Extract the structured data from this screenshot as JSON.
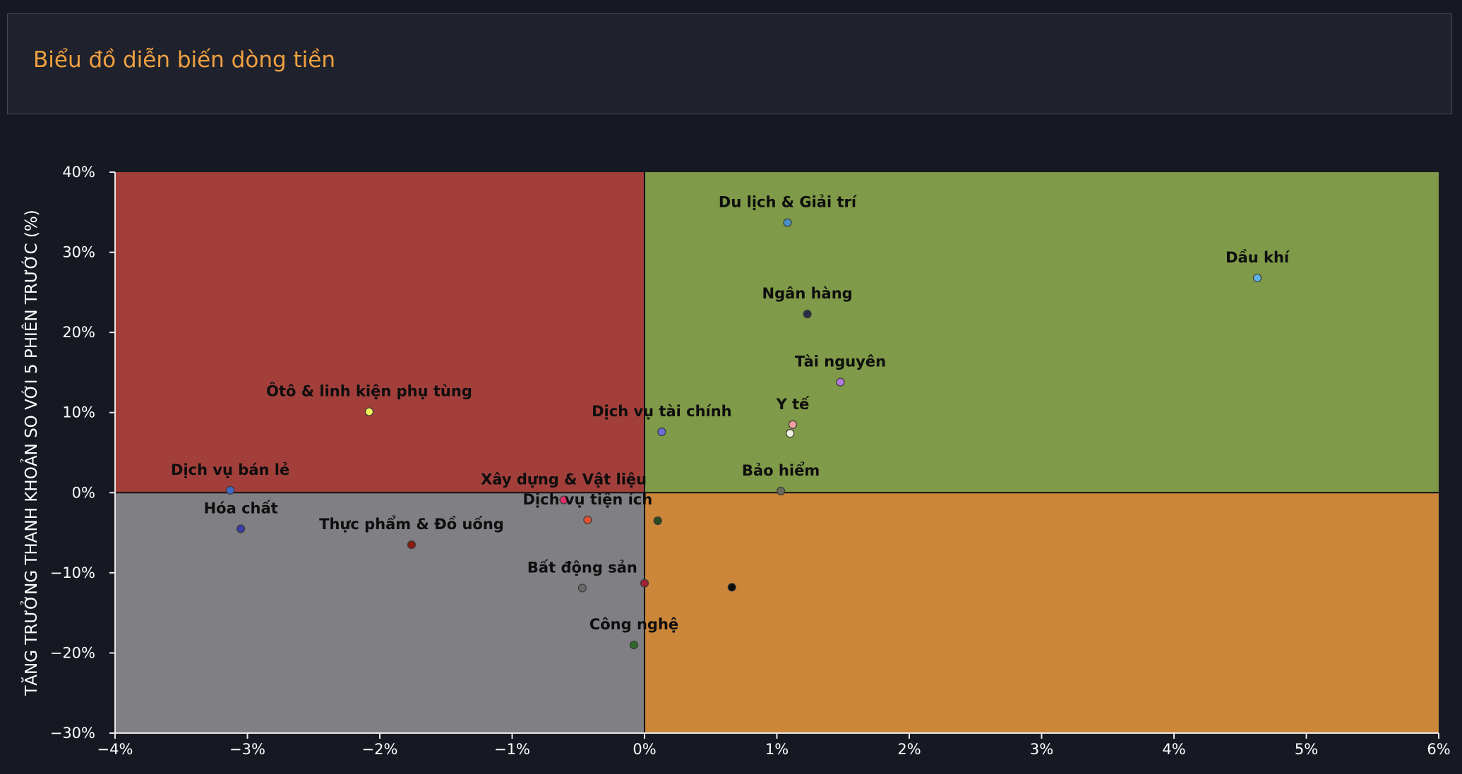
{
  "header": {
    "title": "Biểu đồ diễn biến dòng tiền"
  },
  "chart_data": {
    "type": "scatter",
    "title": "Biểu đồ diễn biến dòng tiền",
    "xlabel": "",
    "ylabel": "TĂNG TRƯỞNG THANH KHOẢN SO VỚI 5 PHIÊN TRƯỚC (%)",
    "xlim": [
      -4,
      6
    ],
    "ylim": [
      -30,
      40
    ],
    "x_ticks": [
      -4,
      -3,
      -2,
      -1,
      0,
      1,
      2,
      3,
      4,
      5,
      6
    ],
    "y_ticks": [
      -30,
      -20,
      -10,
      0,
      10,
      20,
      30,
      40
    ],
    "x_tick_labels": [
      "−4%",
      "−3%",
      "−2%",
      "−1%",
      "0%",
      "1%",
      "2%",
      "3%",
      "4%",
      "5%",
      "6%"
    ],
    "y_tick_labels": [
      "−30%",
      "−20%",
      "−10%",
      "0%",
      "10%",
      "20%",
      "30%",
      "40%"
    ],
    "grid": false,
    "quadrants": {
      "top_left": "#a23f3b",
      "top_right": "#7f9a48",
      "bottom_left": "#808084",
      "bottom_right": "#cc863a"
    },
    "points": [
      {
        "label": "Du lịch & Giải trí",
        "x": 1.08,
        "y": 33.7,
        "color": "#4a90c4"
      },
      {
        "label": "Dầu khí",
        "x": 4.63,
        "y": 26.8,
        "color": "#5bb5e8"
      },
      {
        "label": "Ngân hàng",
        "x": 1.23,
        "y": 22.3,
        "color": "#2b2c45"
      },
      {
        "label": "Tài nguyên",
        "x": 1.48,
        "y": 13.8,
        "color": "#b478e0"
      },
      {
        "label": "Ôtô & linh kiện phụ tùng",
        "x": -2.08,
        "y": 10.1,
        "color": "#f2f25a"
      },
      {
        "label": "Dịch vụ tài chính",
        "x": 0.13,
        "y": 7.6,
        "color": "#6c6cdc"
      },
      {
        "label": "Y tế",
        "x": 1.12,
        "y": 8.5,
        "color": "#f0a0a0"
      },
      {
        "label": "",
        "x": 1.1,
        "y": 7.4,
        "color": "#f0f0e0"
      },
      {
        "label": "Bảo hiểm",
        "x": 1.03,
        "y": 0.2,
        "color": "#6a6a58"
      },
      {
        "label": "Dịch vụ bán lẻ",
        "x": -3.13,
        "y": 0.3,
        "color": "#3c6ac4"
      },
      {
        "label": "Hóa chất",
        "x": -3.05,
        "y": -4.5,
        "color": "#3c3ca8"
      },
      {
        "label": "Xây dựng & Vật liệu",
        "x": -0.61,
        "y": -0.9,
        "color": "#e0306a"
      },
      {
        "label": "Dịch vụ tiện ích",
        "x": -0.43,
        "y": -3.4,
        "color": "#e05030"
      },
      {
        "label": "",
        "x": 0.1,
        "y": -3.5,
        "color": "#2a4a20"
      },
      {
        "label": "Thực phẩm & Đồ uống",
        "x": -1.76,
        "y": -6.5,
        "color": "#8a1c10"
      },
      {
        "label": "Bất động sản",
        "x": -0.47,
        "y": -11.9,
        "color": "#686868"
      },
      {
        "label": "",
        "x": 0,
        "y": -11.3,
        "color": "#9a2235"
      },
      {
        "label": "",
        "x": 0.66,
        "y": -11.8,
        "color": "#0c0c0c"
      },
      {
        "label": "Công nghệ",
        "x": -0.08,
        "y": -19.0,
        "color": "#2e6a28"
      }
    ]
  }
}
